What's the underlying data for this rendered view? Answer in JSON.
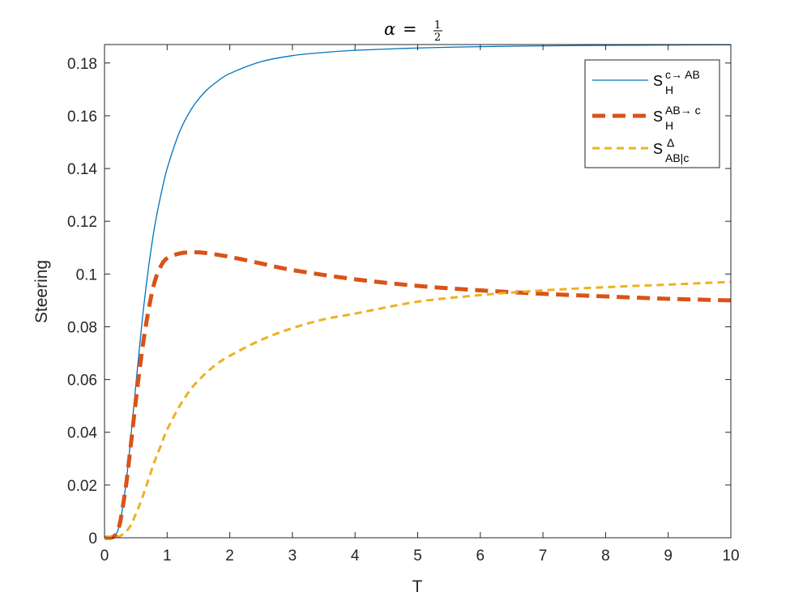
{
  "chart_data": {
    "type": "line",
    "title": "α = 1/2",
    "title_parts": {
      "lhs": "α",
      "eq": "=",
      "num": "1",
      "den": "2"
    },
    "xlabel": "T",
    "ylabel": "Steering",
    "xlim": [
      0,
      10
    ],
    "ylim": [
      0,
      0.187
    ],
    "xticks": [
      0,
      1,
      2,
      3,
      4,
      5,
      6,
      7,
      8,
      9,
      10
    ],
    "xtick_labels": [
      "0",
      "1",
      "2",
      "3",
      "4",
      "5",
      "6",
      "7",
      "8",
      "9",
      "10"
    ],
    "yticks": [
      0,
      0.02,
      0.04,
      0.06,
      0.08,
      0.1,
      0.12,
      0.14,
      0.16,
      0.18
    ],
    "ytick_labels": [
      "0",
      "0.02",
      "0.04",
      "0.06",
      "0.08",
      "0.1",
      "0.12",
      "0.14",
      "0.16",
      "0.18"
    ],
    "grid": false,
    "legend_position": "top-right",
    "series": [
      {
        "name": "S_H^{c→ AB}",
        "legend": {
          "base": "S",
          "sup": "c→ AB",
          "sub": "H"
        },
        "color": "#0072BD",
        "style": "solid",
        "x": [
          0,
          0.1,
          0.15,
          0.2,
          0.25,
          0.3,
          0.35,
          0.4,
          0.5,
          0.6,
          0.7,
          0.8,
          0.9,
          1.0,
          1.2,
          1.4,
          1.6,
          1.8,
          2.0,
          2.5,
          3.0,
          3.5,
          4.0,
          5.0,
          6.0,
          7.0,
          8.0,
          9.0,
          10.0
        ],
        "y": [
          0,
          0,
          0.0005,
          0.002,
          0.006,
          0.013,
          0.022,
          0.033,
          0.058,
          0.082,
          0.102,
          0.118,
          0.13,
          0.14,
          0.154,
          0.163,
          0.169,
          0.173,
          0.176,
          0.1805,
          0.1828,
          0.184,
          0.1848,
          0.1857,
          0.1862,
          0.1865,
          0.1867,
          0.1868,
          0.1869
        ]
      },
      {
        "name": "S_H^{AB→ c}",
        "legend": {
          "base": "S",
          "sup": "AB→ c",
          "sub": "H"
        },
        "color": "#D95319",
        "style": "dashed-thick",
        "x": [
          0,
          0.1,
          0.15,
          0.2,
          0.25,
          0.3,
          0.35,
          0.4,
          0.5,
          0.6,
          0.7,
          0.8,
          0.9,
          1.0,
          1.2,
          1.4,
          1.6,
          2.0,
          2.5,
          3.0,
          4.0,
          5.0,
          6.0,
          7.0,
          8.0,
          9.0,
          10.0
        ],
        "y": [
          0,
          0,
          0.0005,
          0.002,
          0.006,
          0.013,
          0.021,
          0.031,
          0.052,
          0.071,
          0.086,
          0.097,
          0.103,
          0.106,
          0.1078,
          0.1082,
          0.108,
          0.1065,
          0.104,
          0.1015,
          0.098,
          0.0955,
          0.0938,
          0.0925,
          0.0915,
          0.0906,
          0.09
        ]
      },
      {
        "name": "S_{AB|c}^{Δ}",
        "legend": {
          "base": "S",
          "sup": "Δ",
          "sub": "AB|c"
        },
        "color": "#EDB120",
        "style": "dashed",
        "x": [
          0,
          0.2,
          0.3,
          0.4,
          0.5,
          0.6,
          0.7,
          0.8,
          0.9,
          1.0,
          1.2,
          1.4,
          1.6,
          1.8,
          2.0,
          2.5,
          3.0,
          3.5,
          4.0,
          5.0,
          6.0,
          7.0,
          8.0,
          9.0,
          10.0
        ],
        "y": [
          0,
          0.0003,
          0.0015,
          0.004,
          0.009,
          0.015,
          0.022,
          0.029,
          0.035,
          0.041,
          0.05,
          0.057,
          0.062,
          0.066,
          0.069,
          0.075,
          0.0795,
          0.0828,
          0.085,
          0.0895,
          0.092,
          0.0938,
          0.095,
          0.096,
          0.097
        ]
      }
    ]
  }
}
